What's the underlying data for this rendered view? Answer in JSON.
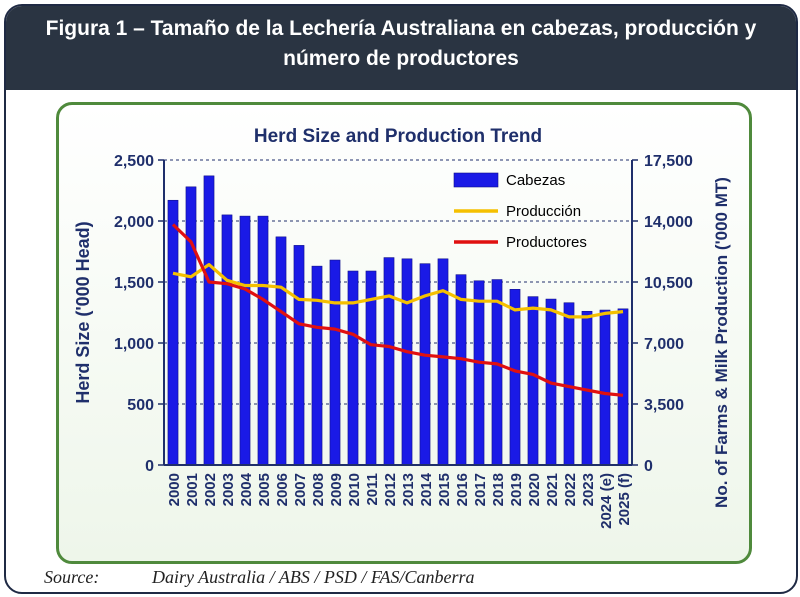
{
  "header": {
    "title_line1": "Figura 1 – Tamaño de la Lechería Australiana en cabezas, producción y",
    "title_line2": "número de productores"
  },
  "source": {
    "label": "Source:",
    "text": "Dairy Australia / ABS / PSD / FAS/Canberra"
  },
  "colors": {
    "header_bg": "#2a3442",
    "bar": "#1a1ae6",
    "production_line": "#f5c000",
    "producers_line": "#e01010",
    "panel_border": "#4f8a3c",
    "axis_text": "#1f2f6b"
  },
  "chart_data": {
    "type": "bar",
    "title": "Herd Size and Production Trend",
    "ylabel": "Herd Size ('000 Head)",
    "y2label": "No. of Farms & Milk Production ('000 MT)",
    "ylim": [
      0,
      2500
    ],
    "y2lim": [
      0,
      17500
    ],
    "yticks": [
      "0",
      "500",
      "1,000",
      "1,500",
      "2,000",
      "2,500"
    ],
    "y2ticks": [
      "0",
      "3,500",
      "7,000",
      "10,500",
      "14,000",
      "17,500"
    ],
    "categories": [
      "2000",
      "2001",
      "2002",
      "2003",
      "2004",
      "2005",
      "2006",
      "2007",
      "2008",
      "2009",
      "2010",
      "2011",
      "2012",
      "2013",
      "2014",
      "2015",
      "2016",
      "2017",
      "2018",
      "2019",
      "2020",
      "2021",
      "2022",
      "2023",
      "2024 (e)",
      "2025 (f)"
    ],
    "series": [
      {
        "name": "Cabezas",
        "kind": "bar",
        "axis": "left",
        "values": [
          2170,
          2280,
          2370,
          2050,
          2040,
          2040,
          1870,
          1800,
          1630,
          1680,
          1590,
          1590,
          1700,
          1690,
          1650,
          1690,
          1560,
          1510,
          1520,
          1440,
          1380,
          1360,
          1330,
          1260,
          1270,
          1280
        ]
      },
      {
        "name": "Producción",
        "kind": "line",
        "axis": "right",
        "values": [
          11000,
          10800,
          11500,
          10600,
          10300,
          10300,
          10200,
          9500,
          9450,
          9300,
          9300,
          9500,
          9700,
          9300,
          9700,
          10000,
          9500,
          9400,
          9400,
          8900,
          9000,
          8900,
          8500,
          8500,
          8700,
          8800
        ]
      },
      {
        "name": "Productores",
        "kind": "line",
        "axis": "right",
        "values": [
          13800,
          12800,
          10500,
          10400,
          10100,
          9500,
          8800,
          8100,
          7900,
          7800,
          7500,
          6900,
          6800,
          6500,
          6300,
          6200,
          6100,
          5900,
          5800,
          5400,
          5200,
          4700,
          4500,
          4300,
          4100,
          4000
        ]
      }
    ],
    "legend_position": "top-right",
    "grid": "dashed horizontal"
  }
}
